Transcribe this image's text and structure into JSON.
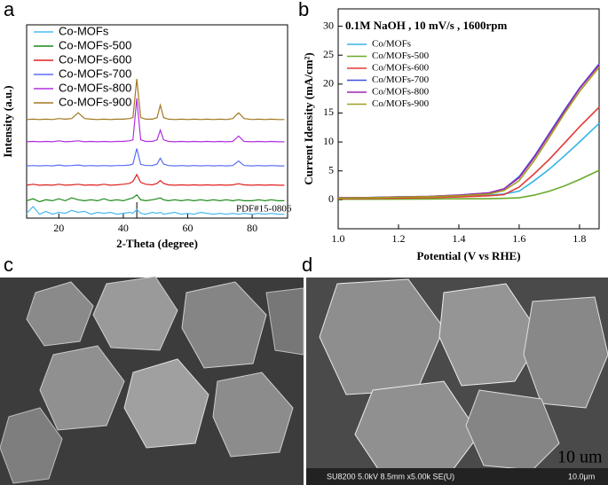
{
  "panel_labels": [
    "a",
    "b",
    "c",
    "d"
  ],
  "chart_data": [
    {
      "type": "line",
      "xlabel": "2-Theta (degree)",
      "ylabel": "Intensity (a.u.)",
      "annotation": "PDF#15-0806",
      "legend": "upper left",
      "xlim": [
        10,
        91
      ],
      "xticks": [
        20,
        40,
        60,
        80
      ],
      "ylim": [
        0,
        10
      ],
      "x": [
        10,
        12,
        14,
        16,
        18,
        20,
        22,
        24,
        26,
        28,
        30,
        32,
        34,
        36,
        38,
        40,
        42,
        43,
        44.2,
        45.4,
        47,
        49,
        50.5,
        51.5,
        52.5,
        54,
        56,
        58,
        60,
        62,
        64,
        66,
        68,
        70,
        72,
        74,
        75.8,
        77.5,
        80,
        82,
        84,
        86,
        88,
        90
      ],
      "series": [
        {
          "name": "Co-MOFs",
          "color": "#4fb8f0",
          "values": [
            0.25,
            0.6,
            0.2,
            0.35,
            0.2,
            0.3,
            0.25,
            0.4,
            0.3,
            0.35,
            0.2,
            0.3,
            0.25,
            0.3,
            0.2,
            0.25,
            0.3,
            0.25,
            0.45,
            0.25,
            0.2,
            0.3,
            0.25,
            0.3,
            0.2,
            0.25,
            0.3,
            0.2,
            0.25,
            0.2,
            0.3,
            0.25,
            0.2,
            0.25,
            0.2,
            0.25,
            0.2,
            0.25,
            0.2,
            0.25,
            0.2,
            0.25,
            0.2,
            0.2
          ]
        },
        {
          "name": "Co-MOFs-500",
          "color": "#1a8a1a",
          "values": [
            0.9,
            1.0,
            0.85,
            0.95,
            0.9,
            1.0,
            0.9,
            1.05,
            0.95,
            0.9,
            0.95,
            0.9,
            1.0,
            0.9,
            0.95,
            0.9,
            1.0,
            1.05,
            1.2,
            0.95,
            0.9,
            0.95,
            1.0,
            1.05,
            0.95,
            0.9,
            0.95,
            0.9,
            0.95,
            0.9,
            0.95,
            0.9,
            0.95,
            0.9,
            0.95,
            0.9,
            0.95,
            0.9,
            0.9,
            0.95,
            0.9,
            0.95,
            0.9,
            0.9
          ]
        },
        {
          "name": "Co-MOFs-600",
          "color": "#e02020",
          "values": [
            1.7,
            1.75,
            1.7,
            1.72,
            1.7,
            1.75,
            1.7,
            1.72,
            1.75,
            1.7,
            1.72,
            1.7,
            1.75,
            1.7,
            1.72,
            1.75,
            1.8,
            1.9,
            2.25,
            1.85,
            1.75,
            1.72,
            1.8,
            1.95,
            1.8,
            1.72,
            1.7,
            1.72,
            1.7,
            1.72,
            1.7,
            1.72,
            1.7,
            1.72,
            1.7,
            1.72,
            1.78,
            1.72,
            1.7,
            1.72,
            1.7,
            1.72,
            1.7,
            1.7
          ]
        },
        {
          "name": "Co-MOFs-700",
          "color": "#5b6ef5",
          "values": [
            2.7,
            2.72,
            2.7,
            2.72,
            2.7,
            2.75,
            2.7,
            2.72,
            2.75,
            2.7,
            2.72,
            2.7,
            2.72,
            2.7,
            2.72,
            2.72,
            2.75,
            2.8,
            3.6,
            2.78,
            2.72,
            2.72,
            2.8,
            3.1,
            2.8,
            2.72,
            2.7,
            2.72,
            2.7,
            2.72,
            2.7,
            2.72,
            2.7,
            2.72,
            2.7,
            2.72,
            2.95,
            2.72,
            2.7,
            2.72,
            2.7,
            2.72,
            2.7,
            2.7
          ]
        },
        {
          "name": "Co-MOFs-800",
          "color": "#b030e0",
          "values": [
            3.95,
            3.97,
            3.95,
            3.97,
            3.95,
            4.0,
            3.95,
            3.97,
            4.0,
            3.95,
            3.97,
            3.95,
            3.97,
            3.95,
            3.97,
            3.97,
            4.0,
            4.05,
            6.2,
            4.05,
            3.97,
            3.97,
            4.05,
            4.55,
            4.05,
            3.97,
            3.95,
            3.97,
            3.95,
            3.97,
            3.95,
            3.97,
            3.95,
            3.97,
            3.95,
            3.97,
            4.25,
            3.97,
            3.95,
            3.97,
            3.95,
            3.97,
            3.95,
            3.95
          ]
        },
        {
          "name": "Co-MOFs-900",
          "color": "#a07820",
          "values": [
            5.1,
            5.12,
            5.1,
            5.12,
            5.1,
            5.15,
            5.12,
            5.15,
            5.45,
            5.15,
            5.12,
            5.1,
            5.12,
            5.1,
            5.12,
            5.12,
            5.15,
            5.2,
            7.2,
            5.2,
            5.12,
            5.12,
            5.2,
            5.85,
            5.2,
            5.12,
            5.1,
            5.12,
            5.1,
            5.12,
            5.1,
            5.12,
            5.1,
            5.12,
            5.1,
            5.15,
            5.45,
            5.15,
            5.1,
            5.12,
            5.1,
            5.12,
            5.1,
            5.1
          ]
        }
      ]
    },
    {
      "type": "line",
      "title": "0.1M NaOH , 10 mV/s , 1600rpm",
      "xlabel": "Potential (V vs RHE)",
      "ylabel": "Current Idensity (mA/cm²)",
      "legend": "upper left",
      "xlim": [
        1.0,
        1.865
      ],
      "xticks": [
        {
          "value": 1.0,
          "label": "1.0"
        },
        1.2,
        1.4,
        1.6,
        1.8
      ],
      "ylim": [
        -5,
        33
      ],
      "yticks": [
        0,
        5,
        10,
        15,
        20,
        25,
        30
      ],
      "x": [
        1.0,
        1.1,
        1.2,
        1.3,
        1.4,
        1.5,
        1.55,
        1.6,
        1.65,
        1.7,
        1.75,
        1.8,
        1.865
      ],
      "series": [
        {
          "name": "Co/MOFs",
          "color": "#33b5e5",
          "values": [
            0.3,
            0.35,
            0.4,
            0.5,
            0.6,
            0.8,
            1.0,
            1.5,
            3.3,
            5.3,
            7.6,
            10,
            13.2
          ]
        },
        {
          "name": "Co/MOFs-500",
          "color": "#6aaa2a",
          "values": [
            0.1,
            0.1,
            0.12,
            0.15,
            0.18,
            0.2,
            0.25,
            0.35,
            0.8,
            1.5,
            2.4,
            3.5,
            5.1
          ]
        },
        {
          "name": "Co/MOFs-600",
          "color": "#e53935",
          "values": [
            0.2,
            0.25,
            0.3,
            0.4,
            0.5,
            0.7,
            0.9,
            2.2,
            4.5,
            7,
            9.8,
            12.6,
            16
          ]
        },
        {
          "name": "Co/MOFs-700",
          "color": "#3f51e0",
          "values": [
            0.35,
            0.4,
            0.5,
            0.6,
            0.8,
            1.2,
            1.9,
            4,
            7.5,
            11.5,
            15.5,
            19.3,
            23.5
          ]
        },
        {
          "name": "Co/MOFs-800",
          "color": "#9c27b0",
          "values": [
            0.35,
            0.4,
            0.5,
            0.6,
            0.8,
            1.2,
            1.9,
            3.8,
            7.3,
            11.3,
            15.3,
            19.2,
            23.3
          ]
        },
        {
          "name": "Co/MOFs-900",
          "color": "#a0a020",
          "values": [
            0.3,
            0.35,
            0.45,
            0.55,
            0.7,
            1.0,
            1.6,
            3.3,
            6.8,
            10.8,
            14.9,
            18.7,
            22.9
          ]
        }
      ]
    }
  ],
  "sem": {
    "scale_label": "10 um",
    "info": "SU8200 5.0kV 8.5mm x5.00k SE(U)",
    "scale_bar": "10.0μm"
  }
}
